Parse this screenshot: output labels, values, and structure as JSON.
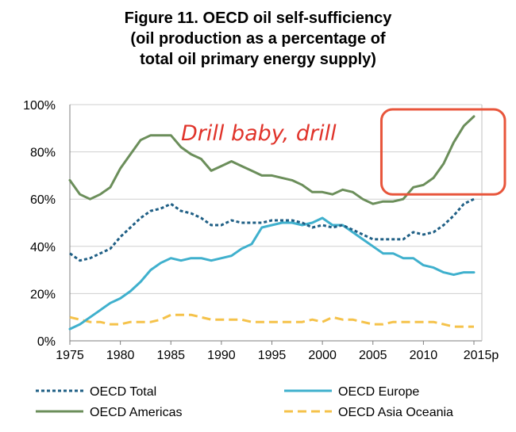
{
  "chart_data": {
    "type": "line",
    "title": "Figure 11. OECD oil self-sufficiency",
    "subtitle_line1": "(oil production as a percentage of",
    "subtitle_line2": "total oil primary energy supply)",
    "xlabel": "",
    "ylabel": "",
    "x": [
      1975,
      1976,
      1977,
      1978,
      1979,
      1980,
      1981,
      1982,
      1983,
      1984,
      1985,
      1986,
      1987,
      1988,
      1989,
      1990,
      1991,
      1992,
      1993,
      1994,
      1995,
      1996,
      1997,
      1998,
      1999,
      2000,
      2001,
      2002,
      2003,
      2004,
      2005,
      2006,
      2007,
      2008,
      2009,
      2010,
      2011,
      2012,
      2013,
      2014,
      2015
    ],
    "x_tick_labels": [
      "1975",
      "1980",
      "1985",
      "1990",
      "1995",
      "2000",
      "2005",
      "2010",
      "2015p"
    ],
    "y_tick_labels": [
      "0%",
      "20%",
      "40%",
      "60%",
      "80%",
      "100%"
    ],
    "ylim": [
      0,
      100
    ],
    "grid": "horizontal",
    "legend_placement": "bottom",
    "series": [
      {
        "name": "OECD Total",
        "style": "dotted",
        "color": "#1f5f85",
        "values": [
          37,
          34,
          35,
          37,
          39,
          44,
          48,
          52,
          55,
          56,
          58,
          55,
          54,
          52,
          49,
          49,
          51,
          50,
          50,
          50,
          51,
          51,
          51,
          50,
          48,
          49,
          48,
          49,
          47,
          45,
          43,
          43,
          43,
          43,
          46,
          45,
          46,
          49,
          53,
          58,
          60
        ]
      },
      {
        "name": "OECD Europe",
        "style": "solid",
        "color": "#3fb0cd",
        "values": [
          5,
          7,
          10,
          13,
          16,
          18,
          21,
          25,
          30,
          33,
          35,
          34,
          35,
          35,
          34,
          35,
          36,
          39,
          41,
          48,
          49,
          50,
          50,
          49,
          50,
          52,
          49,
          49,
          46,
          43,
          40,
          37,
          37,
          35,
          35,
          32,
          31,
          29,
          28,
          29,
          29
        ]
      },
      {
        "name": "OECD Americas",
        "style": "solid",
        "color": "#6b8e5a",
        "values": [
          68,
          62,
          60,
          62,
          65,
          73,
          79,
          85,
          87,
          87,
          87,
          82,
          79,
          77,
          72,
          74,
          76,
          74,
          72,
          70,
          70,
          69,
          68,
          66,
          63,
          63,
          62,
          64,
          63,
          60,
          58,
          59,
          59,
          60,
          65,
          66,
          69,
          75,
          84,
          91,
          95
        ]
      },
      {
        "name": "OECD Asia Oceania",
        "style": "dashed",
        "color": "#f5c24a",
        "values": [
          10,
          9,
          8,
          8,
          7,
          7,
          8,
          8,
          8,
          9,
          11,
          11,
          11,
          10,
          9,
          9,
          9,
          9,
          8,
          8,
          8,
          8,
          8,
          8,
          9,
          8,
          10,
          9,
          9,
          8,
          7,
          7,
          8,
          8,
          8,
          8,
          8,
          7,
          6,
          6,
          6
        ]
      }
    ],
    "annotation": {
      "text": "Drill baby, drill",
      "color": "#e0332a"
    }
  }
}
